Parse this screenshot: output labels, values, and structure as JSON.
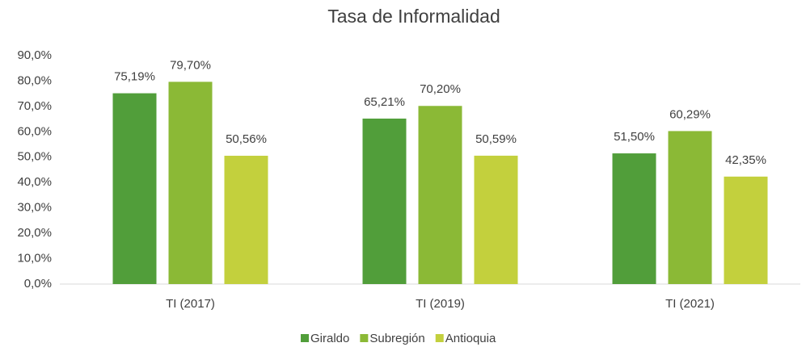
{
  "chart_data": {
    "type": "bar",
    "title": "Tasa de Informalidad",
    "categories": [
      "TI (2017)",
      "TI (2019)",
      "TI (2021)"
    ],
    "series": [
      {
        "name": "Giraldo",
        "color": "#519e3a",
        "values": [
          75.19,
          65.21,
          51.5
        ],
        "value_labels": [
          "75,19%",
          "65,21%",
          "51,50%"
        ]
      },
      {
        "name": "Subregión",
        "color": "#8bb936",
        "values": [
          79.7,
          70.2,
          60.29
        ],
        "value_labels": [
          "79,70%",
          "70,20%",
          "60,29%"
        ]
      },
      {
        "name": "Antioquia",
        "color": "#c3d03d",
        "values": [
          50.56,
          50.59,
          42.35
        ],
        "value_labels": [
          "50,56%",
          "50,59%",
          "42,35%"
        ]
      }
    ],
    "ylim": [
      0,
      90
    ],
    "yticks": [
      {
        "value": 0,
        "label": "0,0%"
      },
      {
        "value": 10,
        "label": "10,0%"
      },
      {
        "value": 20,
        "label": "20,0%"
      },
      {
        "value": 30,
        "label": "30,0%"
      },
      {
        "value": 40,
        "label": "40,0%"
      },
      {
        "value": 50,
        "label": "50,0%"
      },
      {
        "value": 60,
        "label": "60,0%"
      },
      {
        "value": 70,
        "label": "70,0%"
      },
      {
        "value": 80,
        "label": "80,0%"
      },
      {
        "value": 90,
        "label": "90,0%"
      }
    ],
    "grid": false,
    "legend": "bottom"
  }
}
